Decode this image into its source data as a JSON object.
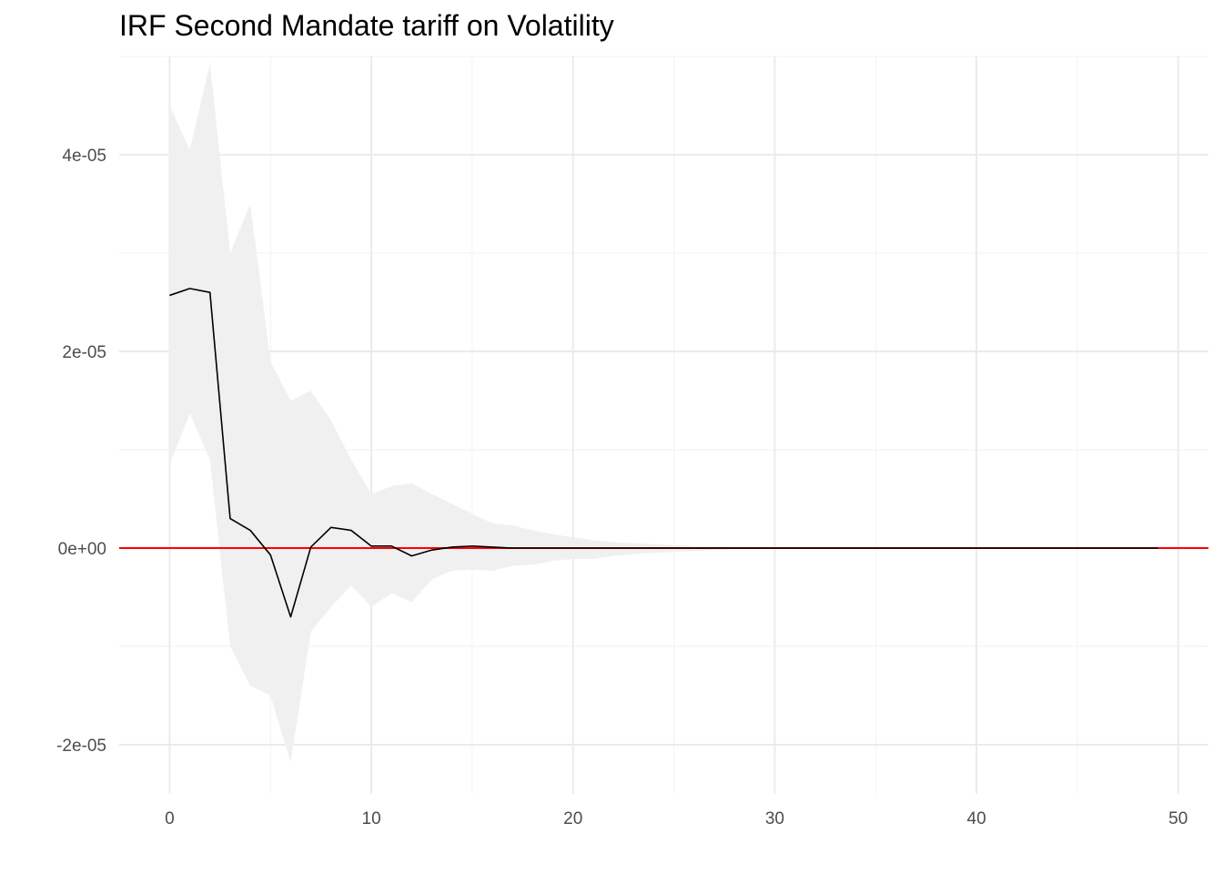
{
  "chart_data": {
    "type": "line",
    "title": "IRF Second Mandate tariff on Volatility",
    "xlabel": "",
    "ylabel": "",
    "xlim": [
      -2.5,
      51.5
    ],
    "ylim": [
      -2.5e-05,
      5e-05
    ],
    "x_ticks": [
      0,
      10,
      20,
      30,
      40,
      50
    ],
    "x_tick_labels": [
      "0",
      "10",
      "20",
      "30",
      "40",
      "50"
    ],
    "y_ticks": [
      -2e-05,
      0,
      2e-05,
      4e-05
    ],
    "y_tick_labels": [
      "-2e-05",
      "0e+00",
      "2e-05",
      "4e-05"
    ],
    "grid": true,
    "zero_line_color": "#ff0000",
    "line_color": "#000000",
    "band_color": "#f0f0f0",
    "x": [
      0,
      1,
      2,
      3,
      4,
      5,
      6,
      7,
      8,
      9,
      10,
      11,
      12,
      13,
      14,
      15,
      16,
      17,
      18,
      19,
      20,
      21,
      22,
      23,
      24,
      25,
      26,
      27,
      28,
      29,
      30,
      31,
      32,
      33,
      34,
      35,
      36,
      37,
      38,
      39,
      40,
      41,
      42,
      43,
      44,
      45,
      46,
      47,
      48,
      49
    ],
    "series": [
      {
        "values": [
          2.57e-05,
          2.64e-05,
          2.6e-05,
          3e-06,
          1.8e-06,
          -7e-07,
          -7e-06,
          1e-07,
          2.1e-06,
          1.8e-06,
          2e-07,
          2e-07,
          -8e-07,
          -2e-07,
          1e-07,
          2e-07,
          1e-07,
          0,
          0,
          0,
          0,
          0,
          0,
          0,
          0,
          0,
          0,
          0,
          0,
          0,
          0,
          0,
          0,
          0,
          0,
          0,
          0,
          0,
          0,
          0,
          0,
          0,
          0,
          0,
          0,
          0,
          0,
          0,
          0,
          0
        ]
      }
    ],
    "band": {
      "upper": [
        4.5e-05,
        4.05e-05,
        4.93e-05,
        3e-05,
        3.5e-05,
        1.9e-05,
        1.5e-05,
        1.6e-05,
        1.3e-05,
        9e-06,
        5.5e-06,
        6.3e-06,
        6.6e-06,
        5.5e-06,
        4.5e-06,
        3.5e-06,
        2.5e-06,
        2.3e-06,
        1.8e-06,
        1.4e-06,
        1.1e-06,
        8e-07,
        6e-07,
        5e-07,
        4e-07,
        3e-07,
        2e-07,
        1e-07,
        1e-07,
        1e-07,
        0,
        0,
        0,
        0,
        0,
        0,
        0,
        0,
        0,
        0,
        0,
        0,
        0,
        0,
        0,
        0,
        0,
        0,
        0,
        0
      ],
      "lower": [
        8.5e-06,
        1.37e-05,
        9e-06,
        -1e-05,
        -1.4e-05,
        -1.5e-05,
        -2.18e-05,
        -8.5e-06,
        -6e-06,
        -3.8e-06,
        -6e-06,
        -4.6e-06,
        -5.5e-06,
        -3.2e-06,
        -2.3e-06,
        -2.2e-06,
        -2.3e-06,
        -1.8e-06,
        -1.7e-06,
        -1.3e-06,
        -1.1e-06,
        -1.1e-06,
        -8e-07,
        -6e-07,
        -5e-07,
        -4e-07,
        -3e-07,
        -2e-07,
        -1e-07,
        -1e-07,
        0,
        0,
        0,
        0,
        0,
        0,
        0,
        0,
        0,
        0,
        0,
        0,
        0,
        0,
        0,
        0,
        0,
        0,
        0,
        0
      ]
    }
  }
}
